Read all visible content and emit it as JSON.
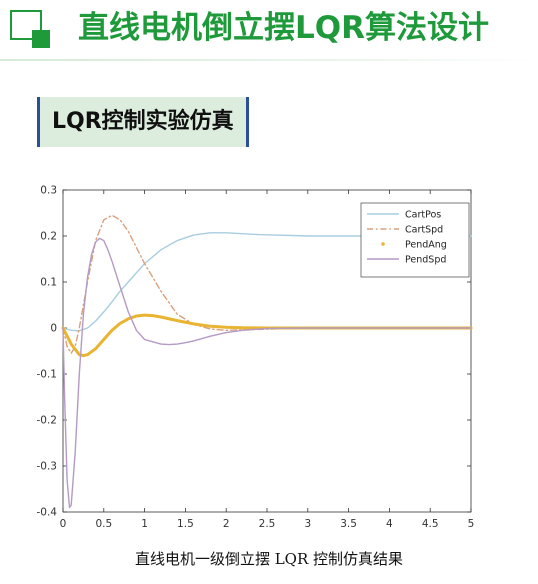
{
  "slide": {
    "title": "直线电机倒立摆LQR算法设计",
    "section_label": "LQR控制实验仿真",
    "caption": "直线电机一级倒立摆 LQR 控制仿真结果",
    "accent_color": "#1e9a3a",
    "label_bg_color": "#dcecdd",
    "label_border_color": "#2a4f9a"
  },
  "chart_data": {
    "type": "line",
    "title": "",
    "xlabel": "",
    "ylabel": "",
    "xlim": [
      0,
      5
    ],
    "ylim": [
      -0.4,
      0.3
    ],
    "x_ticks": [
      "0",
      "0.5",
      "1",
      "1.5",
      "2",
      "2.5",
      "3",
      "3.5",
      "4",
      "4.5",
      "5"
    ],
    "y_ticks": [
      "-0.4",
      "-0.3",
      "-0.2",
      "-0.1",
      "0",
      "0.1",
      "0.2",
      "0.3"
    ],
    "grid": false,
    "legend_position": "top-right",
    "series": [
      {
        "name": "CartPos",
        "color": "#a8cde0",
        "style": "solid",
        "x": [
          0,
          0.1,
          0.2,
          0.3,
          0.4,
          0.5,
          0.6,
          0.7,
          0.8,
          0.9,
          1.0,
          1.2,
          1.4,
          1.6,
          1.8,
          2.0,
          2.2,
          2.4,
          2.6,
          2.8,
          3.0,
          3.5,
          4.0,
          4.5,
          5.0
        ],
        "y": [
          0,
          -0.005,
          -0.006,
          0.0,
          0.015,
          0.035,
          0.057,
          0.08,
          0.1,
          0.12,
          0.14,
          0.17,
          0.19,
          0.202,
          0.207,
          0.207,
          0.205,
          0.203,
          0.202,
          0.201,
          0.2,
          0.2,
          0.2,
          0.2,
          0.2
        ]
      },
      {
        "name": "CartSpd",
        "color": "#d9a07e",
        "style": "dashdot",
        "x": [
          0,
          0.05,
          0.1,
          0.15,
          0.2,
          0.3,
          0.4,
          0.5,
          0.6,
          0.7,
          0.8,
          0.9,
          1.0,
          1.1,
          1.2,
          1.4,
          1.6,
          1.8,
          2.0,
          2.2,
          2.4,
          2.6,
          2.8,
          3.0,
          3.5,
          4.0,
          5.0
        ],
        "y": [
          0,
          -0.04,
          -0.055,
          -0.04,
          0.0,
          0.1,
          0.19,
          0.235,
          0.245,
          0.235,
          0.21,
          0.175,
          0.14,
          0.11,
          0.08,
          0.03,
          0.008,
          -0.002,
          -0.005,
          -0.004,
          -0.003,
          -0.002,
          -0.001,
          0,
          0,
          0,
          0
        ]
      },
      {
        "name": "PendAng",
        "color": "#e8b431",
        "style": "thick",
        "x": [
          0,
          0.1,
          0.2,
          0.25,
          0.3,
          0.4,
          0.5,
          0.6,
          0.7,
          0.8,
          0.9,
          1.0,
          1.1,
          1.2,
          1.4,
          1.6,
          1.8,
          2.0,
          2.2,
          2.5,
          3.0,
          4.0,
          5.0
        ],
        "y": [
          0,
          -0.035,
          -0.058,
          -0.06,
          -0.058,
          -0.045,
          -0.025,
          -0.005,
          0.01,
          0.02,
          0.026,
          0.028,
          0.027,
          0.024,
          0.016,
          0.009,
          0.004,
          0.0015,
          0.0005,
          0,
          0,
          0,
          0
        ]
      },
      {
        "name": "PendSpd",
        "color": "#b49ac4",
        "style": "solid",
        "x": [
          0,
          0.02,
          0.05,
          0.08,
          0.1,
          0.15,
          0.2,
          0.25,
          0.3,
          0.35,
          0.4,
          0.45,
          0.5,
          0.55,
          0.6,
          0.7,
          0.8,
          0.9,
          1.0,
          1.1,
          1.2,
          1.3,
          1.4,
          1.5,
          1.6,
          1.8,
          2.0,
          2.2,
          2.5,
          3.0,
          4.0,
          5.0
        ],
        "y": [
          0,
          -0.15,
          -0.33,
          -0.39,
          -0.385,
          -0.27,
          -0.1,
          0.03,
          0.11,
          0.16,
          0.187,
          0.195,
          0.19,
          0.17,
          0.145,
          0.09,
          0.035,
          -0.005,
          -0.025,
          -0.03,
          -0.035,
          -0.036,
          -0.035,
          -0.032,
          -0.028,
          -0.018,
          -0.01,
          -0.005,
          -0.001,
          0,
          0,
          0
        ]
      }
    ]
  }
}
